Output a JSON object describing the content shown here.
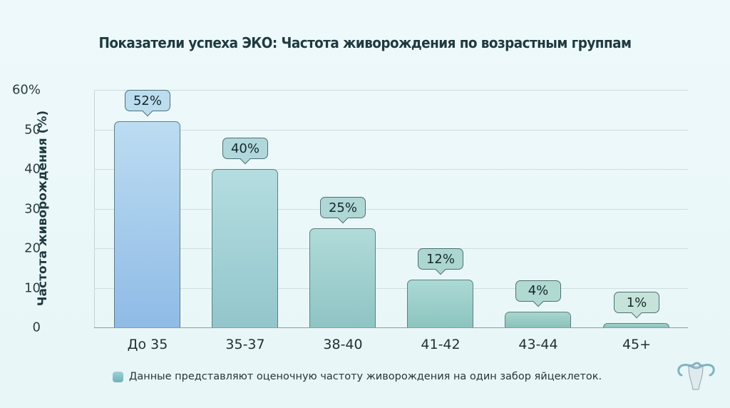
{
  "chart_data": {
    "type": "bar",
    "title": "Показатели успеха ЭКО: Частота живорождения по возрастным группам",
    "xlabel": "",
    "ylabel": "Частота живорождения (%)",
    "categories": [
      "До 35",
      "35-37",
      "38-40",
      "41-42",
      "43-44",
      "45+"
    ],
    "values": [
      52,
      40,
      25,
      12,
      4,
      1
    ],
    "data_labels": [
      "52%",
      "40%",
      "25%",
      "12%",
      "4%",
      "1%"
    ],
    "ylim": [
      0,
      60
    ],
    "yticks": [
      "0",
      "10",
      "20",
      "30",
      "40",
      "50",
      "60%"
    ],
    "grid": true,
    "legend": {
      "text": "Данные представляют оценочную частоту живорождения на один забор яйцеклеток.",
      "position": "bottom"
    },
    "colors": {
      "bar_top": [
        "#bcdcf2",
        "#b4dde0",
        "#b0dbd9",
        "#acd9d4",
        "#a8d6cf",
        "#a4d4cc"
      ],
      "bar_bottom": [
        "#8fbbe6",
        "#92c6cc",
        "#8fc4c4",
        "#8cc4bf",
        "#8ac2ba",
        "#88c0b7"
      ],
      "bubble": [
        "#bcdcf0",
        "#b0d8dc",
        "#aed7d6",
        "#acd7d0",
        "#b0d9d2",
        "#c6e3d9"
      ]
    }
  },
  "header": {
    "title": "Показатели успеха ЭКО: Частота живорождения по возрастным группам"
  },
  "axis": {
    "y_label": "Частота живорождения (%)"
  },
  "footer": {
    "note": "Данные представляют оценочную частоту живорождения на один забор яйцеклеток.",
    "logo_icon": "uterus-icon"
  }
}
